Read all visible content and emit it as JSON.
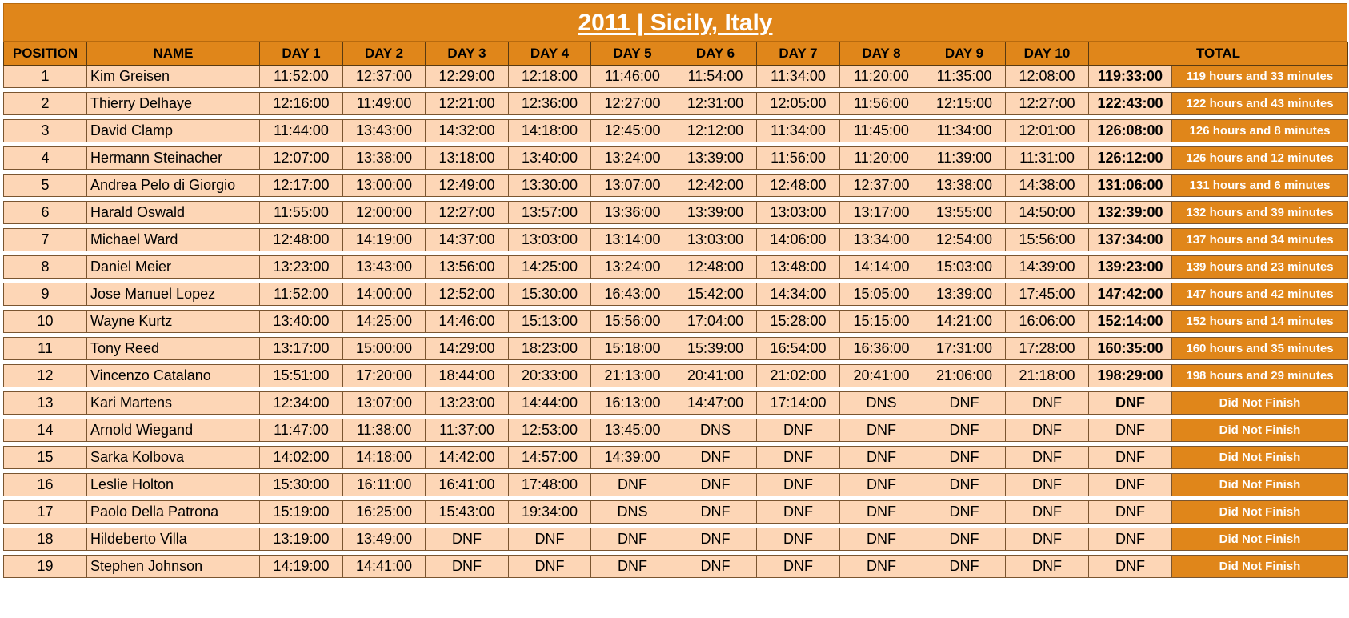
{
  "title": "2011 | Sicily, Italy",
  "headers": [
    "POSITION",
    "NAME",
    "DAY 1",
    "DAY 2",
    "DAY 3",
    "DAY 4",
    "DAY 5",
    "DAY 6",
    "DAY 7",
    "DAY 8",
    "DAY 9",
    "DAY 10",
    "TOTAL"
  ],
  "rows": [
    {
      "position": "1",
      "name": "Kim Greisen",
      "days": [
        "11:52:00",
        "12:37:00",
        "12:29:00",
        "12:18:00",
        "11:46:00",
        "11:54:00",
        "11:34:00",
        "11:20:00",
        "11:35:00",
        "12:08:00"
      ],
      "total": "119:33:00",
      "total_text": "119 hours and 33 minutes"
    },
    {
      "position": "2",
      "name": "Thierry Delhaye",
      "days": [
        "12:16:00",
        "11:49:00",
        "12:21:00",
        "12:36:00",
        "12:27:00",
        "12:31:00",
        "12:05:00",
        "11:56:00",
        "12:15:00",
        "12:27:00"
      ],
      "total": "122:43:00",
      "total_text": "122 hours and 43 minutes"
    },
    {
      "position": "3",
      "name": "David Clamp",
      "days": [
        "11:44:00",
        "13:43:00",
        "14:32:00",
        "14:18:00",
        "12:45:00",
        "12:12:00",
        "11:34:00",
        "11:45:00",
        "11:34:00",
        "12:01:00"
      ],
      "total": "126:08:00",
      "total_text": "126 hours and 8 minutes"
    },
    {
      "position": "4",
      "name": "Hermann Steinacher",
      "days": [
        "12:07:00",
        "13:38:00",
        "13:18:00",
        "13:40:00",
        "13:24:00",
        "13:39:00",
        "11:56:00",
        "11:20:00",
        "11:39:00",
        "11:31:00"
      ],
      "total": "126:12:00",
      "total_text": "126 hours and 12 minutes"
    },
    {
      "position": "5",
      "name": "Andrea Pelo di Giorgio",
      "days": [
        "12:17:00",
        "13:00:00",
        "12:49:00",
        "13:30:00",
        "13:07:00",
        "12:42:00",
        "12:48:00",
        "12:37:00",
        "13:38:00",
        "14:38:00"
      ],
      "total": "131:06:00",
      "total_text": "131 hours and 6 minutes"
    },
    {
      "position": "6",
      "name": "Harald Oswald",
      "days": [
        "11:55:00",
        "12:00:00",
        "12:27:00",
        "13:57:00",
        "13:36:00",
        "13:39:00",
        "13:03:00",
        "13:17:00",
        "13:55:00",
        "14:50:00"
      ],
      "total": "132:39:00",
      "total_text": "132 hours and 39 minutes"
    },
    {
      "position": "7",
      "name": "Michael Ward",
      "days": [
        "12:48:00",
        "14:19:00",
        "14:37:00",
        "13:03:00",
        "13:14:00",
        "13:03:00",
        "14:06:00",
        "13:34:00",
        "12:54:00",
        "15:56:00"
      ],
      "total": "137:34:00",
      "total_text": "137 hours and 34 minutes"
    },
    {
      "position": "8",
      "name": "Daniel Meier",
      "days": [
        "13:23:00",
        "13:43:00",
        "13:56:00",
        "14:25:00",
        "13:24:00",
        "12:48:00",
        "13:48:00",
        "14:14:00",
        "15:03:00",
        "14:39:00"
      ],
      "total": "139:23:00",
      "total_text": "139 hours and 23 minutes"
    },
    {
      "position": "9",
      "name": "Jose Manuel Lopez",
      "days": [
        "11:52:00",
        "14:00:00",
        "12:52:00",
        "15:30:00",
        "16:43:00",
        "15:42:00",
        "14:34:00",
        "15:05:00",
        "13:39:00",
        "17:45:00"
      ],
      "total": "147:42:00",
      "total_text": "147 hours and 42 minutes"
    },
    {
      "position": "10",
      "name": "Wayne Kurtz",
      "days": [
        "13:40:00",
        "14:25:00",
        "14:46:00",
        "15:13:00",
        "15:56:00",
        "17:04:00",
        "15:28:00",
        "15:15:00",
        "14:21:00",
        "16:06:00"
      ],
      "total": "152:14:00",
      "total_text": "152 hours and 14 minutes"
    },
    {
      "position": "11",
      "name": "Tony Reed",
      "days": [
        "13:17:00",
        "15:00:00",
        "14:29:00",
        "18:23:00",
        "15:18:00",
        "15:39:00",
        "16:54:00",
        "16:36:00",
        "17:31:00",
        "17:28:00"
      ],
      "total": "160:35:00",
      "total_text": "160 hours and 35 minutes"
    },
    {
      "position": "12",
      "name": "Vincenzo Catalano",
      "days": [
        "15:51:00",
        "17:20:00",
        "18:44:00",
        "20:33:00",
        "21:13:00",
        "20:41:00",
        "21:02:00",
        "20:41:00",
        "21:06:00",
        "21:18:00"
      ],
      "total": "198:29:00",
      "total_text": "198 hours and 29 minutes"
    },
    {
      "position": "13",
      "name": "Kari Martens",
      "days": [
        "12:34:00",
        "13:07:00",
        "13:23:00",
        "14:44:00",
        "16:13:00",
        "14:47:00",
        "17:14:00",
        "DNS",
        "DNF",
        "DNF"
      ],
      "total": "DNF",
      "total_text": "Did Not Finish"
    },
    {
      "position": "14",
      "name": "Arnold Wiegand",
      "days": [
        "11:47:00",
        "11:38:00",
        "11:37:00",
        "12:53:00",
        "13:45:00",
        "DNS",
        "DNF",
        "DNF",
        "DNF",
        "DNF"
      ],
      "total": "DNF",
      "total_text": "Did Not Finish"
    },
    {
      "position": "15",
      "name": "Sarka Kolbova",
      "days": [
        "14:02:00",
        "14:18:00",
        "14:42:00",
        "14:57:00",
        "14:39:00",
        "DNF",
        "DNF",
        "DNF",
        "DNF",
        "DNF"
      ],
      "total": "DNF",
      "total_text": "Did Not Finish"
    },
    {
      "position": "16",
      "name": "Leslie Holton",
      "days": [
        "15:30:00",
        "16:11:00",
        "16:41:00",
        "17:48:00",
        "DNF",
        "DNF",
        "DNF",
        "DNF",
        "DNF",
        "DNF"
      ],
      "total": "DNF",
      "total_text": "Did Not Finish"
    },
    {
      "position": "17",
      "name": "Paolo Della Patrona",
      "days": [
        "15:19:00",
        "16:25:00",
        "15:43:00",
        "19:34:00",
        "DNS",
        "DNF",
        "DNF",
        "DNF",
        "DNF",
        "DNF"
      ],
      "total": "DNF",
      "total_text": "Did Not Finish"
    },
    {
      "position": "18",
      "name": "Hildeberto Villa",
      "days": [
        "13:19:00",
        "13:49:00",
        "DNF",
        "DNF",
        "DNF",
        "DNF",
        "DNF",
        "DNF",
        "DNF",
        "DNF"
      ],
      "total": "DNF",
      "total_text": "Did Not Finish"
    },
    {
      "position": "19",
      "name": "Stephen Johnson",
      "days": [
        "14:19:00",
        "14:41:00",
        "DNF",
        "DNF",
        "DNF",
        "DNF",
        "DNF",
        "DNF",
        "DNF",
        "DNF"
      ],
      "total": "DNF",
      "total_text": "Did Not Finish"
    }
  ],
  "bold_total_positions": [
    "1",
    "2",
    "3",
    "4",
    "5",
    "6",
    "7",
    "8",
    "9",
    "10",
    "11",
    "12",
    "13"
  ],
  "colors": {
    "header_bg": "#E0861A",
    "row_bg": "#FDD6B6",
    "total_label_bg": "#E0861A",
    "total_label_text": "#ffffff"
  }
}
